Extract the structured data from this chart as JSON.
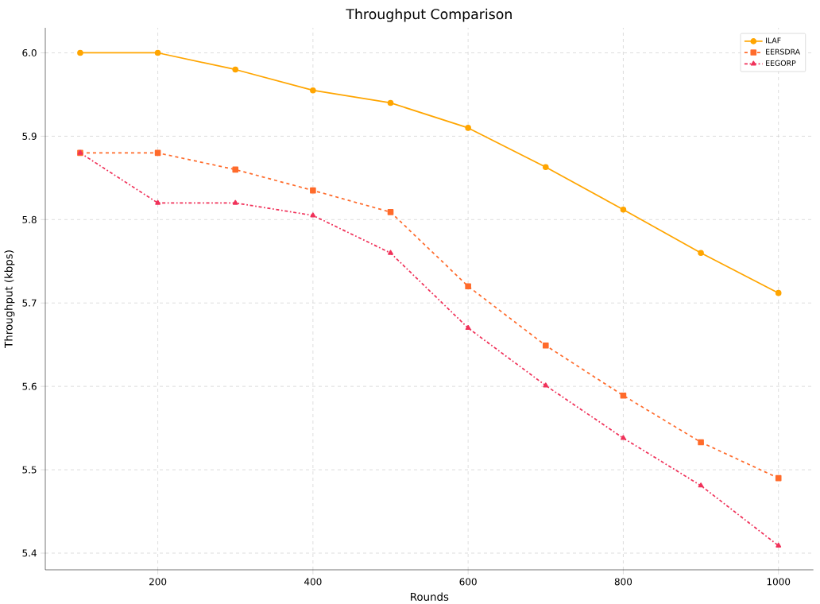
{
  "chart_data": {
    "type": "line",
    "title": "Throughput Comparison",
    "xlabel": "Rounds",
    "ylabel": "Throughput (kbps)",
    "x": [
      100,
      200,
      300,
      400,
      500,
      600,
      700,
      800,
      900,
      1000
    ],
    "series": [
      {
        "name": "ILAF",
        "color": "#ffa500",
        "marker": "circle",
        "line_style": "solid",
        "values": [
          6.0,
          6.0,
          5.98,
          5.955,
          5.94,
          5.91,
          5.863,
          5.812,
          5.76,
          5.712
        ]
      },
      {
        "name": "EERSDRA",
        "color": "#ff6b2b",
        "marker": "square",
        "line_style": "dashed",
        "values": [
          5.88,
          5.88,
          5.86,
          5.835,
          5.809,
          5.72,
          5.649,
          5.589,
          5.533,
          5.49
        ]
      },
      {
        "name": "EEGORP",
        "color": "#f0325a",
        "marker": "triangle",
        "line_style": "dashdot",
        "values": [
          5.88,
          5.82,
          5.82,
          5.805,
          5.76,
          5.67,
          5.601,
          5.538,
          5.481,
          5.409
        ]
      }
    ],
    "xlim": [
      55,
      1045
    ],
    "ylim": [
      5.38,
      6.03
    ],
    "xticks": [
      200,
      400,
      600,
      800,
      1000
    ],
    "yticks": [
      {
        "value": 5.4,
        "label": "5.4"
      },
      {
        "value": 5.5,
        "label": "5.5"
      },
      {
        "value": 5.6,
        "label": "5.6"
      },
      {
        "value": 5.7,
        "label": "5.7"
      },
      {
        "value": 5.8,
        "label": "5.8"
      },
      {
        "value": 5.9,
        "label": "5.9"
      },
      {
        "value": 6.0,
        "label": "6.0"
      }
    ],
    "grid": true,
    "legend": "top right"
  }
}
